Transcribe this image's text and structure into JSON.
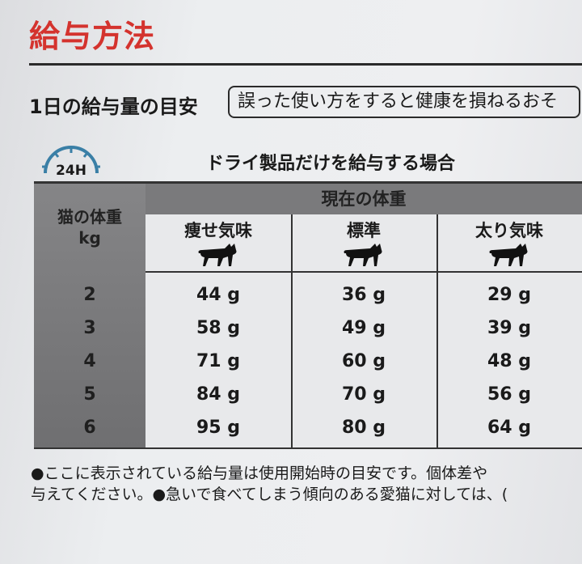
{
  "title": "給与方法",
  "guide_label": "1日の給与量の目安",
  "warning": "誤った使い方をすると健康を損ねるおそ",
  "icon": {
    "name": "24h-clock-icon",
    "label": "24H",
    "color": "#3a7fa6"
  },
  "subtitle": "ドライ製品だけを給与する場合",
  "table": {
    "group_header": "現在の体重",
    "row_header": "猫の体重",
    "row_unit": "kg",
    "columns": [
      "痩せ気味",
      "標準",
      "太り気味"
    ],
    "rows": [
      {
        "kg": "2",
        "values": [
          "44 g",
          "36 g",
          "29 g"
        ]
      },
      {
        "kg": "3",
        "values": [
          "58 g",
          "49 g",
          "39 g"
        ]
      },
      {
        "kg": "4",
        "values": [
          "71 g",
          "60 g",
          "48 g"
        ]
      },
      {
        "kg": "5",
        "values": [
          "84 g",
          "70 g",
          "56 g"
        ]
      },
      {
        "kg": "6",
        "values": [
          "95 g",
          "80 g",
          "64 g"
        ]
      }
    ]
  },
  "footnotes": [
    "●ここに表示されている給与量は使用開始時の目安です。個体差や",
    "与えてください。●急いで食べてしまう傾向のある愛猫に対しては、("
  ],
  "colors": {
    "title": "#d4332e",
    "header": "#7a7a7c"
  }
}
